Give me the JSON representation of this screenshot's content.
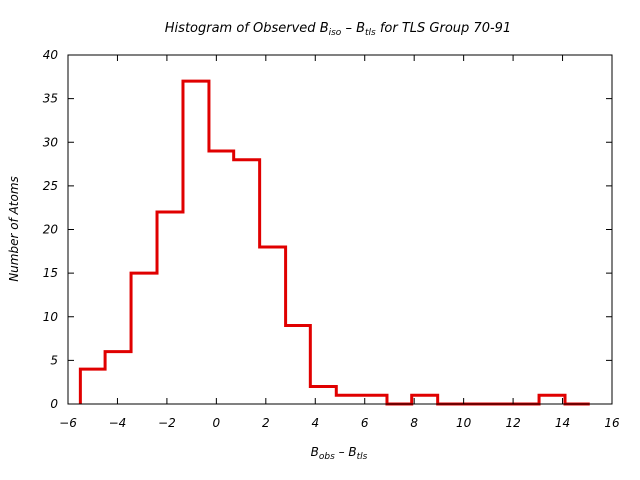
{
  "chart_data": {
    "type": "bar",
    "title": {
      "prefix": "Histogram of Observed B",
      "sub1": "iso",
      "mid": " – B",
      "sub2": "tls",
      "suffix": " for TLS Group 70-91"
    },
    "xlabel": {
      "main1": "B",
      "sub1": "obs",
      "mid": " – B",
      "sub2": "tls"
    },
    "ylabel": "Number of Atoms",
    "xlim": [
      -6,
      16
    ],
    "ylim": [
      0,
      40
    ],
    "xticks": [
      -6,
      -4,
      -2,
      0,
      2,
      4,
      6,
      8,
      10,
      12,
      14,
      16
    ],
    "yticks": [
      0,
      5,
      10,
      15,
      20,
      25,
      30,
      35,
      40
    ],
    "xtick_labels": [
      "−6",
      "−4",
      "−2",
      "0",
      "2",
      "4",
      "6",
      "8",
      "10",
      "12",
      "14",
      "16"
    ],
    "ytick_labels": [
      "0",
      "5",
      "10",
      "15",
      "20",
      "25",
      "30",
      "35",
      "40"
    ],
    "bin_edges": [
      -5.5,
      -4.5,
      -3.45,
      -2.4,
      -1.35,
      -0.3,
      0.7,
      1.75,
      2.8,
      3.8,
      4.85,
      5.9,
      6.9,
      7.9,
      8.95,
      9.95,
      11.0,
      12.0,
      13.05,
      14.1,
      15.1
    ],
    "values": [
      4,
      6,
      15,
      22,
      37,
      29,
      28,
      18,
      9,
      2,
      1,
      1,
      0,
      1,
      0,
      0,
      0,
      0,
      1,
      0
    ],
    "grid": false,
    "legend": "none",
    "colors": {
      "line": "#e00000",
      "axis": "#000000"
    }
  }
}
